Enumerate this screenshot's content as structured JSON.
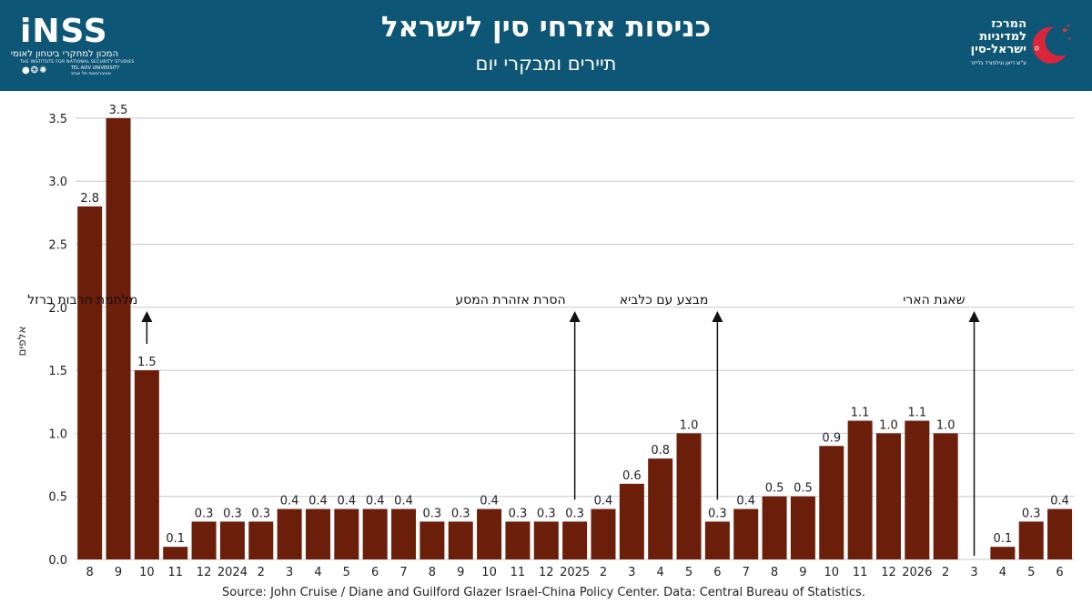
{
  "header": {
    "title": "כניסות אזרחי סין לישראל",
    "subtitle": "תיירים ומבקרי יום",
    "logo_left": {
      "wordmark": "iNSS",
      "hebrew": "המכון למחקרי ביטחון לאומי",
      "english": "THE INSTITUTE FOR NATIONAL SECURITY STUDIES",
      "university_en": "TEL AVIV UNIVERSITY",
      "university_he": "אוניברסיטת תל אביב"
    },
    "logo_right": {
      "line1": "המרכז",
      "line2": "למדיניות",
      "line3": "ישראל-סין",
      "small": "ע\"ש דיאן וגילפורד גלייזר"
    }
  },
  "colors": {
    "header_bg": "#0e5676",
    "bar": "#6b1f0b",
    "grid": "#c8c8c8"
  },
  "chart_data": {
    "type": "bar",
    "title": "כניסות אזרחי סין לישראל",
    "subtitle": "תיירים ומבקרי יום",
    "ylabel": "אלפים",
    "ylim": [
      0,
      3.5
    ],
    "yticks": [
      "0.0",
      "0.5",
      "1.0",
      "1.5",
      "2.0",
      "2.5",
      "3.0",
      "3.5"
    ],
    "grid": true,
    "categories": [
      "8",
      "9",
      "10",
      "11",
      "12",
      "2024",
      "2",
      "3",
      "4",
      "5",
      "6",
      "7",
      "8",
      "9",
      "10",
      "11",
      "12",
      "2025",
      "2",
      "3",
      "4",
      "5",
      "6",
      "7",
      "8",
      "9",
      "10",
      "11",
      "12",
      "2026",
      "2",
      "3",
      "4",
      "5",
      "6"
    ],
    "values": [
      2.8,
      3.5,
      1.5,
      0.1,
      0.3,
      0.3,
      0.3,
      0.4,
      0.4,
      0.4,
      0.4,
      0.4,
      0.3,
      0.3,
      0.4,
      0.3,
      0.3,
      0.3,
      0.4,
      0.6,
      0.8,
      1.0,
      0.3,
      0.4,
      0.5,
      0.5,
      0.9,
      1.1,
      1.0,
      1.1,
      1.0,
      null,
      0.1,
      0.3,
      0.4
    ],
    "labels": [
      "2.8",
      "3.5",
      "1.5",
      "0.1",
      "0.3",
      "0.3",
      "0.3",
      "0.4",
      "0.4",
      "0.4",
      "0.4",
      "0.4",
      "0.3",
      "0.3",
      "0.4",
      "0.3",
      "0.3",
      "0.3",
      "0.4",
      "0.6",
      "0.8",
      "1.0",
      "0.3",
      "0.4",
      "0.5",
      "0.5",
      "0.9",
      "1.1",
      "1.0",
      "1.1",
      "1.0",
      "",
      "0.1",
      "0.3",
      "0.4"
    ],
    "annotations": [
      {
        "text": "מלחמת חרבות ברזל",
        "category_index": 2
      },
      {
        "text": "הסרת אזהרת המסע",
        "category_index": 17
      },
      {
        "text": "מבצע עם כלביא",
        "category_index": 22
      },
      {
        "text": "שאגת הארי",
        "category_index": 31
      }
    ]
  },
  "source": "Source: John Cruise / Diane and Guilford Glazer Israel-China Policy Center. Data: Central Bureau of Statistics."
}
